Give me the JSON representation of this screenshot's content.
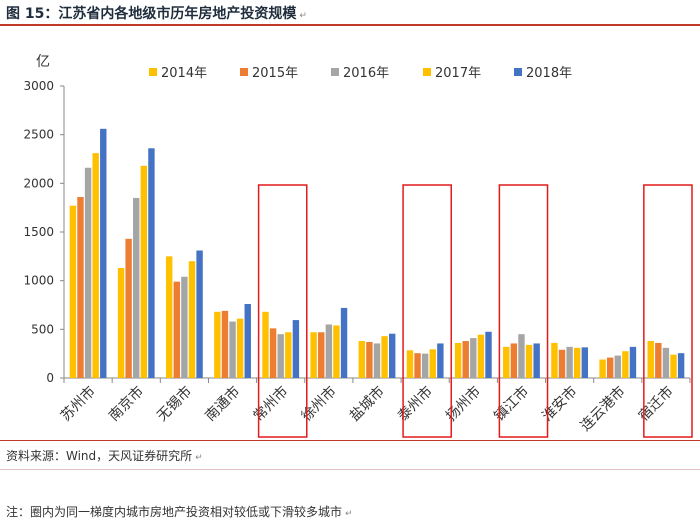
{
  "caption": {
    "title": "图 15：江苏省内各地级市历年房地产投资规模",
    "mark": "↵"
  },
  "footer": {
    "source": "资料来源：Wind，天风证券研究所",
    "note": "注：圈内为同一梯度内城市房地产投资相对较低或下滑较多城市",
    "mark": "↵"
  },
  "colors": {
    "2014年": "#ffc000",
    "2015年": "#ed7d31",
    "2016年": "#a5a5a5",
    "2017年": "#ffc000",
    "2018年": "#4472c4",
    "highlight": "#e31a1c"
  },
  "chart_data": {
    "type": "bar",
    "ylabel": "亿",
    "ylim": [
      0,
      3000
    ],
    "yticks": [
      0,
      500,
      1000,
      1500,
      2000,
      2500,
      3000
    ],
    "legend_position": "top",
    "grid": false,
    "categories": [
      "苏州市",
      "南京市",
      "无锡市",
      "南通市",
      "常州市",
      "徐州市",
      "盐城市",
      "泰州市",
      "扬州市",
      "镇江市",
      "淮安市",
      "连云港市",
      "宿迁市"
    ],
    "series": [
      {
        "name": "2014年",
        "values": [
          1770,
          1130,
          1250,
          680,
          680,
          470,
          380,
          285,
          360,
          320,
          360,
          190,
          380
        ]
      },
      {
        "name": "2015年",
        "values": [
          1860,
          1430,
          990,
          690,
          510,
          470,
          370,
          255,
          380,
          355,
          290,
          210,
          360
        ]
      },
      {
        "name": "2016年",
        "values": [
          2160,
          1850,
          1040,
          580,
          450,
          550,
          355,
          250,
          410,
          450,
          320,
          230,
          310
        ]
      },
      {
        "name": "2017年",
        "values": [
          2310,
          2180,
          1200,
          610,
          470,
          540,
          430,
          295,
          445,
          340,
          310,
          275,
          240
        ]
      },
      {
        "name": "2018年",
        "values": [
          2560,
          2360,
          1310,
          760,
          595,
          720,
          455,
          355,
          475,
          355,
          315,
          320,
          255
        ]
      }
    ],
    "highlighted": [
      "常州市",
      "泰州市",
      "镇江市",
      "宿迁市"
    ]
  }
}
